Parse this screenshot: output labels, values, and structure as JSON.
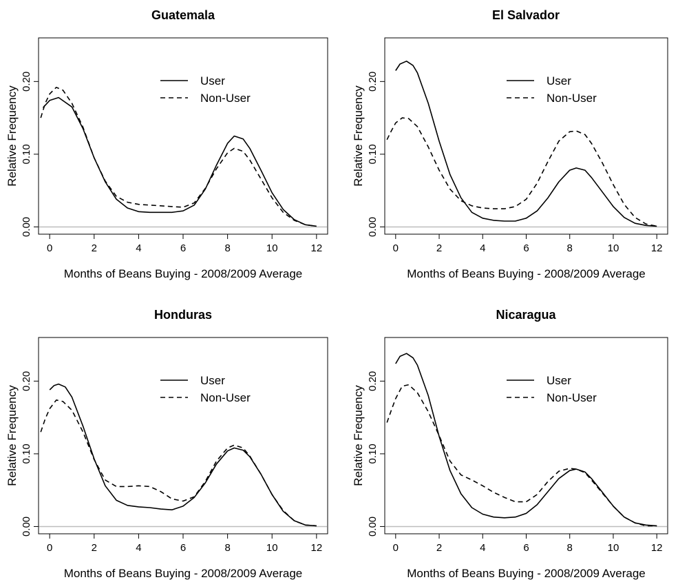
{
  "chart_data": [
    {
      "type": "line",
      "title": "Guatemala",
      "xlabel": "Months of Beans Buying - 2008/2009 Average",
      "ylabel": "Relative Frequency",
      "xlim": [
        -0.5,
        12.5
      ],
      "ylim": [
        -0.01,
        0.26
      ],
      "xticks": [
        "0",
        "2",
        "4",
        "6",
        "8",
        "10",
        "12"
      ],
      "yticks": [
        "0.00",
        "0.10",
        "0.20"
      ],
      "legend": "top-right",
      "grid": false,
      "series": [
        {
          "name": "User",
          "style": "solid",
          "x": [
            -0.3,
            0,
            0.4,
            1,
            1.5,
            2,
            2.5,
            3,
            3.5,
            4,
            4.5,
            5,
            5.5,
            6,
            6.5,
            7,
            7.5,
            8,
            8.3,
            8.7,
            9,
            9.5,
            10,
            10.5,
            11,
            11.5,
            12
          ],
          "values": [
            0.164,
            0.174,
            0.178,
            0.165,
            0.135,
            0.095,
            0.062,
            0.038,
            0.026,
            0.021,
            0.02,
            0.02,
            0.02,
            0.022,
            0.03,
            0.052,
            0.085,
            0.115,
            0.125,
            0.121,
            0.108,
            0.078,
            0.047,
            0.024,
            0.01,
            0.003,
            0.001
          ]
        },
        {
          "name": "Non-User",
          "style": "dashed",
          "x": [
            -0.4,
            -0.2,
            0,
            0.3,
            0.6,
            1,
            1.5,
            2,
            2.5,
            3,
            3.5,
            4,
            4.5,
            5,
            5.5,
            6,
            6.5,
            7,
            7.5,
            8,
            8.3,
            8.7,
            9,
            9.5,
            10,
            10.5,
            11,
            11.5,
            12
          ],
          "values": [
            0.15,
            0.17,
            0.183,
            0.192,
            0.188,
            0.17,
            0.137,
            0.095,
            0.063,
            0.042,
            0.034,
            0.031,
            0.03,
            0.029,
            0.028,
            0.027,
            0.033,
            0.053,
            0.08,
            0.102,
            0.108,
            0.104,
            0.092,
            0.066,
            0.04,
            0.02,
            0.009,
            0.003,
            0.001
          ]
        }
      ]
    },
    {
      "type": "line",
      "title": "El Salvador",
      "xlabel": "Months of Beans Buying - 2008/2009 Average",
      "ylabel": "Relative Frequency",
      "xlim": [
        -0.5,
        12.5
      ],
      "ylim": [
        -0.01,
        0.26
      ],
      "xticks": [
        "0",
        "2",
        "4",
        "6",
        "8",
        "10",
        "12"
      ],
      "yticks": [
        "0.00",
        "0.10",
        "0.20"
      ],
      "legend": "top-right",
      "grid": false,
      "series": [
        {
          "name": "User",
          "style": "solid",
          "x": [
            0,
            0.2,
            0.5,
            0.8,
            1,
            1.5,
            2,
            2.5,
            3,
            3.5,
            4,
            4.5,
            5,
            5.5,
            6,
            6.5,
            7,
            7.5,
            8,
            8.3,
            8.7,
            9,
            9.5,
            10,
            10.5,
            11,
            11.5,
            12
          ],
          "values": [
            0.215,
            0.224,
            0.228,
            0.222,
            0.212,
            0.17,
            0.118,
            0.072,
            0.04,
            0.02,
            0.012,
            0.009,
            0.008,
            0.008,
            0.012,
            0.022,
            0.04,
            0.062,
            0.078,
            0.081,
            0.078,
            0.068,
            0.048,
            0.028,
            0.013,
            0.005,
            0.002,
            0.001
          ]
        },
        {
          "name": "Non-User",
          "style": "dashed",
          "x": [
            -0.4,
            -0.2,
            0,
            0.3,
            0.6,
            1,
            1.5,
            2,
            2.5,
            3,
            3.5,
            4,
            4.5,
            5,
            5.5,
            6,
            6.5,
            7,
            7.5,
            8,
            8.3,
            8.7,
            9,
            9.5,
            10,
            10.5,
            11,
            11.5,
            12
          ],
          "values": [
            0.12,
            0.132,
            0.143,
            0.15,
            0.149,
            0.138,
            0.11,
            0.078,
            0.052,
            0.036,
            0.029,
            0.026,
            0.025,
            0.025,
            0.028,
            0.038,
            0.06,
            0.09,
            0.118,
            0.131,
            0.132,
            0.127,
            0.115,
            0.088,
            0.058,
            0.031,
            0.013,
            0.004,
            0.001
          ]
        }
      ]
    },
    {
      "type": "line",
      "title": "Honduras",
      "xlabel": "Months of Beans Buying - 2008/2009 Average",
      "ylabel": "Relative Frequency",
      "xlim": [
        -0.5,
        12.5
      ],
      "ylim": [
        -0.01,
        0.26
      ],
      "xticks": [
        "0",
        "2",
        "4",
        "6",
        "8",
        "10",
        "12"
      ],
      "yticks": [
        "0.00",
        "0.10",
        "0.20"
      ],
      "legend": "top-right",
      "grid": false,
      "series": [
        {
          "name": "User",
          "style": "solid",
          "x": [
            0,
            0.2,
            0.4,
            0.7,
            1,
            1.5,
            2,
            2.5,
            3,
            3.5,
            4,
            4.5,
            5,
            5.5,
            6,
            6.5,
            7,
            7.5,
            8,
            8.3,
            8.7,
            9,
            9.5,
            10,
            10.5,
            11,
            11.5,
            12
          ],
          "values": [
            0.188,
            0.194,
            0.196,
            0.192,
            0.178,
            0.138,
            0.093,
            0.056,
            0.036,
            0.029,
            0.027,
            0.026,
            0.024,
            0.023,
            0.028,
            0.04,
            0.06,
            0.086,
            0.104,
            0.108,
            0.105,
            0.096,
            0.072,
            0.044,
            0.021,
            0.008,
            0.002,
            0.001
          ]
        },
        {
          "name": "Non-User",
          "style": "dashed",
          "x": [
            -0.4,
            -0.2,
            0,
            0.3,
            0.6,
            1,
            1.5,
            2,
            2.5,
            3,
            3.5,
            4,
            4.5,
            5,
            5.5,
            6,
            6.5,
            7,
            7.5,
            8,
            8.3,
            8.7,
            9,
            9.5,
            10,
            10.5,
            11,
            11.5,
            12
          ],
          "values": [
            0.13,
            0.148,
            0.162,
            0.174,
            0.172,
            0.16,
            0.13,
            0.092,
            0.064,
            0.055,
            0.055,
            0.056,
            0.055,
            0.048,
            0.038,
            0.035,
            0.041,
            0.062,
            0.09,
            0.108,
            0.112,
            0.108,
            0.097,
            0.072,
            0.044,
            0.022,
            0.008,
            0.002,
            0.001
          ]
        }
      ]
    },
    {
      "type": "line",
      "title": "Nicaragua",
      "xlabel": "Months of Beans Buying - 2008/2009 Average",
      "ylabel": "Relative Frequency",
      "xlim": [
        -0.5,
        12.5
      ],
      "ylim": [
        -0.01,
        0.26
      ],
      "xticks": [
        "0",
        "2",
        "4",
        "6",
        "8",
        "10",
        "12"
      ],
      "yticks": [
        "0.00",
        "0.10",
        "0.20"
      ],
      "legend": "top-right",
      "grid": false,
      "series": [
        {
          "name": "User",
          "style": "solid",
          "x": [
            0,
            0.2,
            0.5,
            0.8,
            1,
            1.5,
            2,
            2.5,
            3,
            3.5,
            4,
            4.5,
            5,
            5.5,
            6,
            6.5,
            7,
            7.5,
            8,
            8.3,
            8.7,
            9,
            9.5,
            10,
            10.5,
            11,
            11.5,
            12
          ],
          "values": [
            0.224,
            0.234,
            0.238,
            0.232,
            0.222,
            0.18,
            0.124,
            0.077,
            0.045,
            0.026,
            0.017,
            0.013,
            0.012,
            0.013,
            0.018,
            0.03,
            0.048,
            0.066,
            0.077,
            0.079,
            0.075,
            0.066,
            0.047,
            0.028,
            0.013,
            0.005,
            0.002,
            0.001
          ]
        },
        {
          "name": "Non-User",
          "style": "dashed",
          "x": [
            -0.4,
            -0.2,
            0,
            0.3,
            0.6,
            1,
            1.5,
            2,
            2.5,
            3,
            3.5,
            4,
            4.5,
            5,
            5.5,
            6,
            6.5,
            7,
            7.5,
            8,
            8.3,
            8.7,
            9,
            9.5,
            10,
            10.5,
            11,
            11.5,
            12
          ],
          "values": [
            0.143,
            0.16,
            0.176,
            0.193,
            0.195,
            0.184,
            0.158,
            0.125,
            0.09,
            0.071,
            0.064,
            0.056,
            0.047,
            0.04,
            0.034,
            0.034,
            0.044,
            0.062,
            0.076,
            0.08,
            0.079,
            0.074,
            0.064,
            0.046,
            0.028,
            0.013,
            0.005,
            0.001,
            0.001
          ]
        }
      ]
    }
  ]
}
